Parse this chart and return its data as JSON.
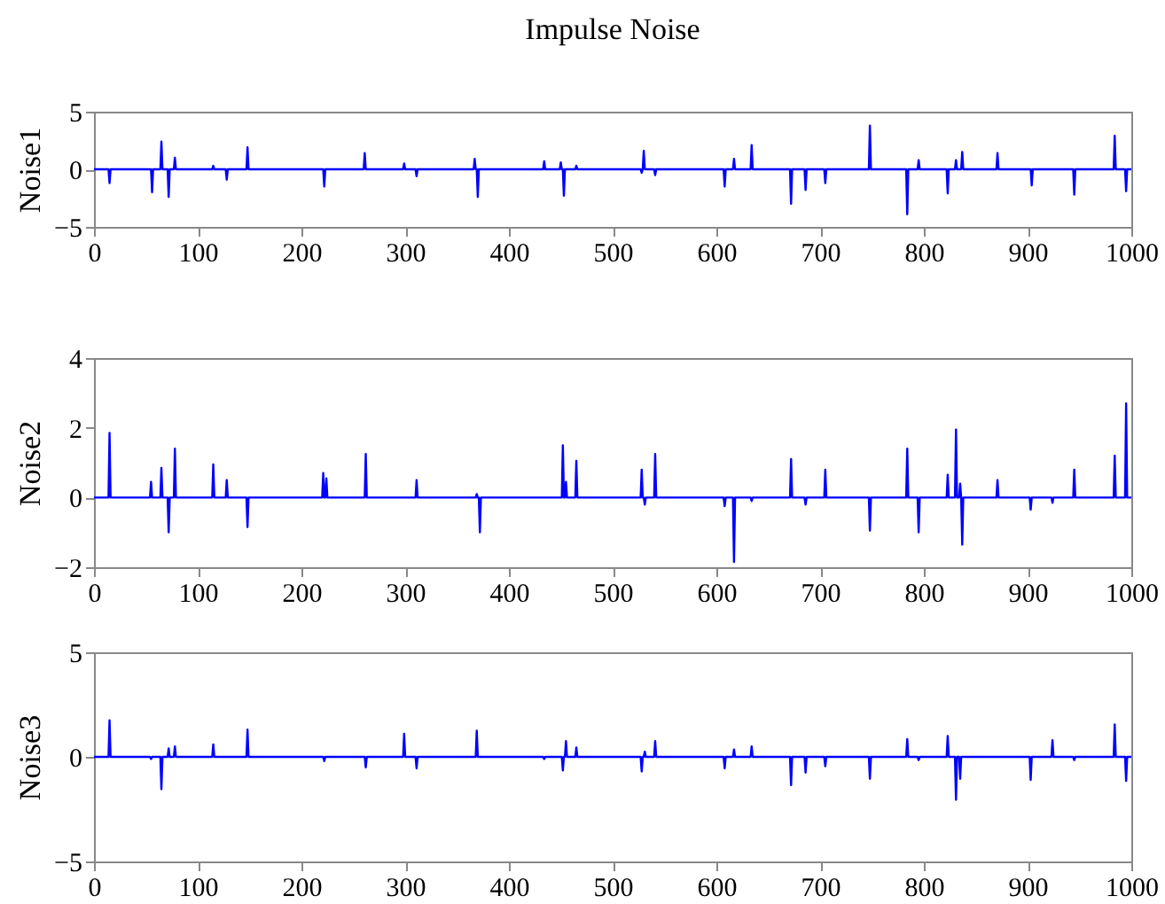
{
  "chart_data": [
    {
      "type": "line",
      "title": "Impulse Noise",
      "ylabel": "Noise1",
      "xlim": [
        0,
        1000
      ],
      "xticks": [
        0,
        100,
        200,
        300,
        400,
        500,
        600,
        700,
        800,
        900,
        1000
      ],
      "ylim": [
        -5,
        5
      ],
      "yticks": [
        -5,
        0,
        5
      ],
      "line_style": "solid",
      "x": [
        0,
        14,
        15,
        16,
        55,
        56,
        57,
        64,
        65,
        66,
        71,
        72,
        73,
        77,
        78,
        79,
        114,
        115,
        116,
        127,
        128,
        129,
        147,
        148,
        149,
        221,
        222,
        223,
        260,
        261,
        262,
        298,
        299,
        300,
        310,
        311,
        312,
        366,
        367,
        368,
        369,
        370,
        371,
        433,
        434,
        435,
        449,
        450,
        451,
        452,
        453,
        454,
        464,
        465,
        466,
        527,
        528,
        529,
        530,
        531,
        540,
        541,
        542,
        607,
        608,
        609,
        616,
        617,
        618,
        633,
        634,
        635,
        671,
        672,
        673,
        685,
        686,
        687,
        704,
        705,
        706,
        747,
        748,
        749,
        783,
        784,
        785,
        794,
        795,
        796,
        822,
        823,
        824,
        830,
        831,
        832,
        836,
        837,
        838,
        870,
        871,
        872,
        903,
        904,
        905,
        944,
        945,
        946,
        983,
        984,
        985,
        994,
        995,
        996,
        1000
      ],
      "series": [
        {
          "color": "#0000ff",
          "values": [
            0,
            0,
            -1.2,
            0,
            0,
            -2.0,
            0,
            0,
            2.4,
            0,
            0,
            -2.4,
            0,
            0,
            1.0,
            0,
            0,
            0.3,
            0,
            0,
            -0.9,
            0,
            0,
            1.9,
            0,
            0,
            -1.5,
            0,
            0,
            1.4,
            0,
            0,
            0.5,
            0,
            0,
            -0.6,
            0,
            0,
            0.9,
            0,
            0,
            -2.4,
            0,
            0,
            0.7,
            0,
            0,
            0.6,
            0,
            0,
            -2.3,
            0,
            0,
            0.3,
            0,
            0,
            -0.3,
            0,
            1.6,
            0,
            0,
            -0.5,
            0,
            0,
            -1.5,
            0,
            0,
            0.9,
            0,
            0,
            2.1,
            0,
            0,
            -3.0,
            0,
            0,
            -1.8,
            0,
            0,
            -1.2,
            0,
            0,
            3.8,
            0,
            0,
            -3.9,
            0,
            0,
            0.8,
            0,
            0,
            -2.1,
            0,
            0,
            0.8,
            0,
            0,
            1.5,
            0,
            0,
            1.4,
            0,
            0,
            -1.4,
            0,
            0,
            -2.2,
            0,
            0,
            2.9,
            0,
            0,
            -1.9,
            0,
            0
          ]
        }
      ]
    },
    {
      "type": "line",
      "ylabel": "Noise2",
      "xlim": [
        0,
        1000
      ],
      "xticks": [
        0,
        100,
        200,
        300,
        400,
        500,
        600,
        700,
        800,
        900,
        1000
      ],
      "ylim": [
        -2,
        4
      ],
      "yticks": [
        -2,
        0,
        2,
        4
      ],
      "line_style": "solid",
      "x": [
        0,
        14,
        15,
        16,
        54,
        55,
        56,
        64,
        65,
        66,
        71,
        72,
        73,
        77,
        78,
        79,
        114,
        115,
        116,
        127,
        128,
        129,
        147,
        148,
        149,
        220,
        221,
        222,
        223,
        224,
        225,
        261,
        262,
        263,
        310,
        311,
        312,
        368,
        369,
        370,
        371,
        372,
        373,
        451,
        452,
        453,
        454,
        455,
        456,
        464,
        465,
        466,
        527,
        528,
        529,
        530,
        531,
        532,
        540,
        541,
        542,
        607,
        608,
        609,
        616,
        617,
        618,
        633,
        634,
        635,
        671,
        672,
        673,
        685,
        686,
        687,
        704,
        705,
        706,
        747,
        748,
        749,
        783,
        784,
        785,
        794,
        795,
        796,
        822,
        823,
        824,
        830,
        831,
        832,
        834,
        835,
        836,
        837,
        838,
        870,
        871,
        872,
        902,
        903,
        904,
        923,
        924,
        925,
        944,
        945,
        946,
        983,
        984,
        985,
        994,
        995,
        996,
        1000
      ],
      "series": [
        {
          "color": "#0000ff",
          "values": [
            0,
            0,
            1.85,
            0,
            0,
            0.45,
            0,
            0,
            0.85,
            0,
            0,
            -1.0,
            0,
            0,
            1.4,
            0,
            0,
            0.95,
            0,
            0,
            0.5,
            0,
            0,
            -0.85,
            0,
            0,
            0.7,
            0,
            0,
            0.55,
            0,
            0,
            1.25,
            0,
            0,
            0.5,
            0,
            0,
            0.1,
            0,
            0,
            -1.0,
            0,
            0,
            1.5,
            0,
            0,
            0.45,
            0,
            0,
            1.05,
            0,
            0,
            0.8,
            0,
            0,
            -0.2,
            0,
            0,
            1.25,
            0,
            0,
            -0.25,
            0,
            0,
            -1.85,
            0,
            0,
            -0.1,
            0,
            0,
            1.1,
            0,
            0,
            -0.2,
            0,
            0,
            0.8,
            0,
            0,
            -0.95,
            0,
            0,
            1.4,
            0,
            0,
            -1.0,
            0,
            0,
            0.65,
            0,
            0,
            1.95,
            0,
            0,
            0.4,
            0,
            -1.35,
            0,
            0,
            0.5,
            0,
            0,
            -0.35,
            0,
            0,
            -0.15,
            0,
            0,
            0.8,
            0,
            0,
            1.2,
            0,
            0,
            2.7,
            0,
            0
          ]
        }
      ]
    },
    {
      "type": "line",
      "ylabel": "Noise3",
      "xlim": [
        0,
        1000
      ],
      "xticks": [
        0,
        100,
        200,
        300,
        400,
        500,
        600,
        700,
        800,
        900,
        1000
      ],
      "ylim": [
        -5,
        5
      ],
      "yticks": [
        -5,
        0,
        5
      ],
      "line_style": "solid",
      "x": [
        0,
        14,
        15,
        16,
        54,
        55,
        56,
        64,
        65,
        66,
        71,
        72,
        73,
        77,
        78,
        79,
        114,
        115,
        116,
        147,
        148,
        149,
        221,
        222,
        223,
        261,
        262,
        263,
        298,
        299,
        300,
        310,
        311,
        312,
        368,
        369,
        370,
        433,
        434,
        435,
        451,
        452,
        453,
        454,
        455,
        456,
        464,
        465,
        466,
        527,
        528,
        529,
        530,
        531,
        532,
        540,
        541,
        542,
        607,
        608,
        609,
        616,
        617,
        618,
        633,
        634,
        635,
        671,
        672,
        673,
        685,
        686,
        687,
        704,
        705,
        706,
        747,
        748,
        749,
        783,
        784,
        785,
        794,
        795,
        796,
        822,
        823,
        824,
        830,
        831,
        832,
        834,
        835,
        836,
        902,
        903,
        904,
        923,
        924,
        925,
        944,
        945,
        946,
        983,
        984,
        985,
        994,
        995,
        996,
        1000
      ],
      "series": [
        {
          "color": "#0000ff",
          "values": [
            0,
            0,
            1.75,
            0,
            0,
            -0.1,
            0,
            0,
            -1.55,
            0,
            0,
            0.4,
            0,
            0,
            0.5,
            0,
            0,
            0.6,
            0,
            0,
            1.3,
            0,
            0,
            -0.2,
            0,
            0,
            -0.5,
            0,
            0,
            1.1,
            0,
            0,
            -0.55,
            0,
            0,
            1.25,
            0,
            0,
            -0.1,
            0,
            0,
            -0.65,
            0,
            0,
            0.75,
            0,
            0,
            0.45,
            0,
            0,
            -0.7,
            0,
            0,
            0.25,
            0,
            0,
            0.75,
            0,
            0,
            -0.55,
            0,
            0,
            0.35,
            0,
            0,
            0.5,
            0,
            0,
            -1.35,
            0,
            0,
            -0.75,
            0,
            0,
            -0.45,
            0,
            0,
            -1.05,
            0,
            0,
            0.85,
            0,
            0,
            -0.15,
            0,
            0,
            1.0,
            0,
            0,
            -2.05,
            0,
            0,
            -1.05,
            0,
            0,
            -1.1,
            0,
            0,
            0.8,
            0,
            0,
            -0.15,
            0,
            0,
            1.55,
            0,
            0,
            -1.15,
            0,
            0
          ]
        }
      ]
    }
  ]
}
